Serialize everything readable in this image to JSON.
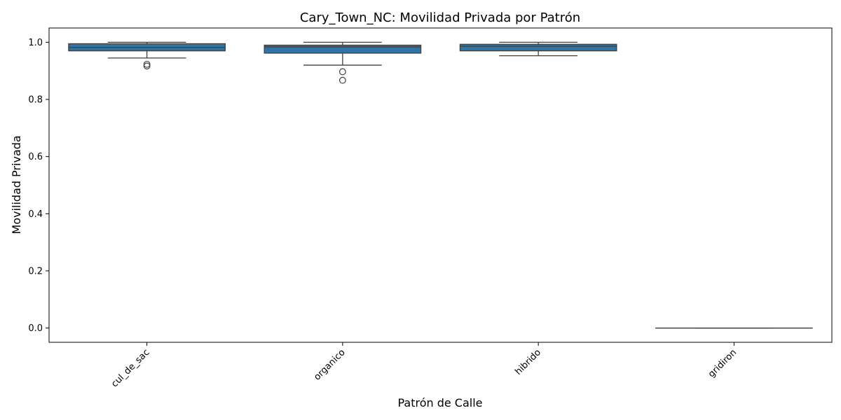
{
  "chart_data": {
    "type": "box",
    "title": "Cary_Town_NC: Movilidad Privada por Patrón",
    "xlabel": "Patrón de Calle",
    "ylabel": "Movilidad Privada",
    "categories": [
      "cul_de_sac",
      "organico",
      "hibrido",
      "gridiron"
    ],
    "ylim": [
      -0.05,
      1.05
    ],
    "yticks": [
      0.0,
      0.2,
      0.4,
      0.6,
      0.8,
      1.0
    ],
    "ytick_labels": [
      "0.0",
      "0.2",
      "0.4",
      "0.6",
      "0.8",
      "1.0"
    ],
    "grid": false,
    "box_color": "#3274a1",
    "line_color": "#3f3f3f",
    "boxes": [
      {
        "category": "cul_de_sac",
        "whisker_low": 0.945,
        "q1": 0.97,
        "median": 0.982,
        "q3": 0.995,
        "whisker_high": 1.0,
        "outliers": [
          0.923,
          0.917
        ]
      },
      {
        "category": "organico",
        "whisker_low": 0.92,
        "q1": 0.962,
        "median": 0.984,
        "q3": 0.99,
        "whisker_high": 1.0,
        "outliers": [
          0.897,
          0.867
        ]
      },
      {
        "category": "hibrido",
        "whisker_low": 0.953,
        "q1": 0.97,
        "median": 0.986,
        "q3": 0.993,
        "whisker_high": 1.0,
        "outliers": []
      },
      {
        "category": "gridiron",
        "whisker_low": 0.0,
        "q1": 0.0,
        "median": 0.0,
        "q3": 0.0,
        "whisker_high": 0.0,
        "outliers": []
      }
    ]
  }
}
